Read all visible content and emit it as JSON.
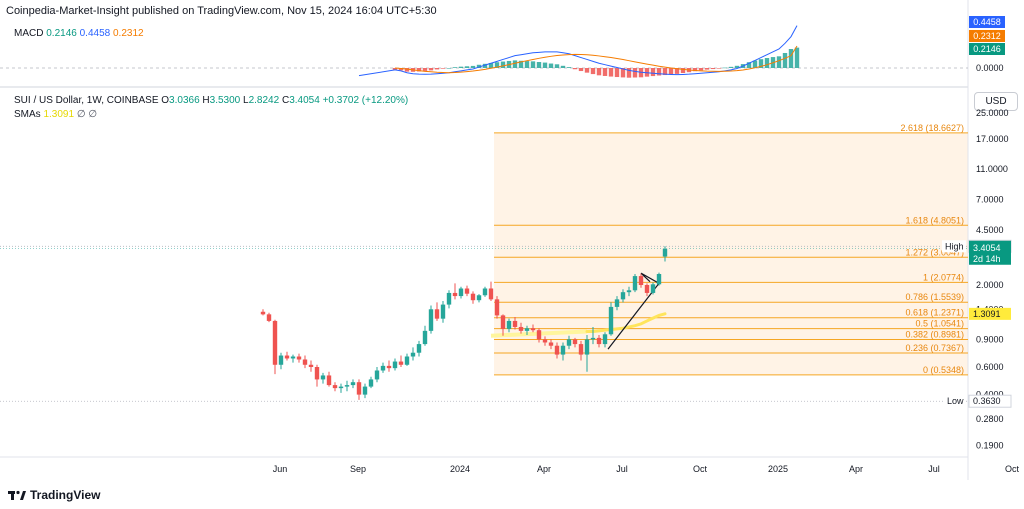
{
  "header": {
    "published": "Coinpedia-Market-Insight published on TradingView.com, Nov 15, 2024 16:04 UTC+5:30"
  },
  "macd": {
    "label": "MACD",
    "v1": "0.2146",
    "v2": "0.4458",
    "v3": "0.2312",
    "scale": [
      "0.4458",
      "0.2312",
      "0.2146",
      "0.0000"
    ],
    "colors": {
      "macd": "#2962ff",
      "signal": "#f57c00",
      "hist_up": "#26a69a",
      "hist_down": "#ef5350"
    }
  },
  "legend": {
    "symbol": "SUI / US Dollar, 1W, COINBASE",
    "o_label": "O",
    "o": "3.0366",
    "h_label": "H",
    "h": "3.5300",
    "l_label": "L",
    "l": "2.8242",
    "c_label": "C",
    "c": "3.4054",
    "change": "+0.3702 (+12.20%)",
    "smas_label": "SMAs",
    "sma_val": "1.3091",
    "sma_z1": "∅",
    "sma_z2": "∅"
  },
  "currency": "USD",
  "price_labels": {
    "high_tag": "High",
    "high": "3.5300",
    "last": "3.4054",
    "countdown": "2d 14h",
    "sma": "1.3091",
    "low_tag": "Low",
    "low": "0.3630"
  },
  "brand": {
    "name": "TradingView",
    "icon": "tradingview-logo-icon"
  },
  "chart_data": {
    "type": "candlestick",
    "scale": "log",
    "ylim": [
      0.16,
      30
    ],
    "y_ticks": [
      {
        "v": 25,
        "t": "25.0000"
      },
      {
        "v": 17,
        "t": "17.0000"
      },
      {
        "v": 11,
        "t": "11.0000"
      },
      {
        "v": 7,
        "t": "7.0000"
      },
      {
        "v": 4.5,
        "t": "4.5000"
      },
      {
        "v": 2,
        "t": "2.0000"
      },
      {
        "v": 1.4,
        "t": "1.4000"
      },
      {
        "v": 0.9,
        "t": "0.9000"
      },
      {
        "v": 0.6,
        "t": "0.6000"
      },
      {
        "v": 0.4,
        "t": "0.4000"
      },
      {
        "v": 0.28,
        "t": "0.2800"
      },
      {
        "v": 0.19,
        "t": "0.1900"
      }
    ],
    "x_ticks": [
      {
        "t": "Jun",
        "w": 0
      },
      {
        "t": "Sep",
        "w": 13
      },
      {
        "t": "2024",
        "w": 30
      },
      {
        "t": "Apr",
        "w": 44
      },
      {
        "t": "Jul",
        "w": 57
      },
      {
        "t": "Oct",
        "w": 70
      },
      {
        "t": "2025",
        "w": 83
      },
      {
        "t": "Apr",
        "w": 96
      },
      {
        "t": "Jul",
        "w": 109
      },
      {
        "t": "Oct",
        "w": 122
      }
    ],
    "fibonacci": [
      {
        "label": "2.618 (18.6627)",
        "value": 18.6627
      },
      {
        "label": "1.618 (4.8051)",
        "value": 4.8051
      },
      {
        "label": "1.272 (3.0047)",
        "value": 3.0047
      },
      {
        "label": "1 (2.0774)",
        "value": 2.0774
      },
      {
        "label": "0.786 (1.5539)",
        "value": 1.5539
      },
      {
        "label": "0.618 (1.2371)",
        "value": 1.2371
      },
      {
        "label": "0.5 (1.0541)",
        "value": 1.0541
      },
      {
        "label": "0.382 (0.8981)",
        "value": 0.8981
      },
      {
        "label": "0.236 (0.7367)",
        "value": 0.7367
      },
      {
        "label": "0 (0.5348)",
        "value": 0.5348
      }
    ],
    "candles": [
      [
        1.35,
        1.4,
        1.28,
        1.3
      ],
      [
        1.3,
        1.33,
        1.16,
        1.18
      ],
      [
        1.18,
        1.2,
        0.54,
        0.62
      ],
      [
        0.62,
        0.74,
        0.58,
        0.71
      ],
      [
        0.71,
        0.75,
        0.66,
        0.68
      ],
      [
        0.68,
        0.72,
        0.64,
        0.7
      ],
      [
        0.7,
        0.73,
        0.64,
        0.67
      ],
      [
        0.67,
        0.71,
        0.59,
        0.62
      ],
      [
        0.62,
        0.66,
        0.56,
        0.6
      ],
      [
        0.6,
        0.62,
        0.45,
        0.5
      ],
      [
        0.5,
        0.55,
        0.47,
        0.53
      ],
      [
        0.53,
        0.56,
        0.45,
        0.46
      ],
      [
        0.46,
        0.48,
        0.42,
        0.44
      ],
      [
        0.44,
        0.47,
        0.41,
        0.45
      ],
      [
        0.45,
        0.49,
        0.42,
        0.46
      ],
      [
        0.46,
        0.5,
        0.44,
        0.48
      ],
      [
        0.48,
        0.5,
        0.37,
        0.4
      ],
      [
        0.4,
        0.47,
        0.38,
        0.45
      ],
      [
        0.45,
        0.52,
        0.44,
        0.5
      ],
      [
        0.5,
        0.6,
        0.48,
        0.57
      ],
      [
        0.57,
        0.64,
        0.55,
        0.61
      ],
      [
        0.61,
        0.66,
        0.56,
        0.59
      ],
      [
        0.59,
        0.68,
        0.57,
        0.65
      ],
      [
        0.65,
        0.71,
        0.6,
        0.62
      ],
      [
        0.62,
        0.73,
        0.61,
        0.7
      ],
      [
        0.7,
        0.8,
        0.66,
        0.74
      ],
      [
        0.74,
        0.88,
        0.7,
        0.84
      ],
      [
        0.84,
        1.1,
        0.82,
        1.02
      ],
      [
        1.02,
        1.48,
        0.98,
        1.4
      ],
      [
        1.4,
        1.55,
        1.18,
        1.22
      ],
      [
        1.22,
        1.58,
        1.15,
        1.5
      ],
      [
        1.5,
        1.85,
        1.42,
        1.78
      ],
      [
        1.78,
        2.05,
        1.62,
        1.7
      ],
      [
        1.7,
        1.95,
        1.64,
        1.9
      ],
      [
        1.9,
        1.98,
        1.7,
        1.76
      ],
      [
        1.76,
        1.82,
        1.52,
        1.6
      ],
      [
        1.6,
        1.75,
        1.55,
        1.72
      ],
      [
        1.72,
        1.95,
        1.68,
        1.9
      ],
      [
        1.9,
        2.1,
        1.58,
        1.62
      ],
      [
        1.62,
        1.7,
        1.22,
        1.28
      ],
      [
        1.28,
        1.3,
        0.95,
        1.05
      ],
      [
        1.05,
        1.22,
        1.0,
        1.18
      ],
      [
        1.18,
        1.25,
        1.04,
        1.08
      ],
      [
        1.08,
        1.15,
        0.98,
        1.02
      ],
      [
        1.02,
        1.1,
        0.96,
        1.06
      ],
      [
        1.06,
        1.12,
        1.0,
        1.03
      ],
      [
        1.03,
        1.06,
        0.86,
        0.9
      ],
      [
        0.9,
        0.94,
        0.82,
        0.86
      ],
      [
        0.86,
        0.9,
        0.78,
        0.82
      ],
      [
        0.82,
        0.86,
        0.68,
        0.72
      ],
      [
        0.72,
        0.86,
        0.66,
        0.82
      ],
      [
        0.82,
        0.95,
        0.78,
        0.9
      ],
      [
        0.9,
        0.92,
        0.8,
        0.84
      ],
      [
        0.84,
        0.88,
        0.66,
        0.72
      ],
      [
        0.72,
        0.96,
        0.56,
        0.9
      ],
      [
        0.9,
        1.08,
        0.84,
        0.92
      ],
      [
        0.92,
        0.96,
        0.8,
        0.84
      ],
      [
        0.84,
        1.0,
        0.8,
        0.97
      ],
      [
        0.97,
        1.55,
        0.95,
        1.45
      ],
      [
        1.45,
        1.7,
        1.38,
        1.62
      ],
      [
        1.62,
        1.88,
        1.55,
        1.8
      ],
      [
        1.8,
        1.95,
        1.7,
        1.85
      ],
      [
        1.85,
        2.35,
        1.8,
        2.28
      ],
      [
        2.28,
        2.36,
        1.92,
        2.0
      ],
      [
        2.0,
        2.05,
        1.7,
        1.78
      ],
      [
        1.78,
        2.08,
        1.74,
        2.02
      ],
      [
        2.02,
        2.4,
        1.98,
        2.35
      ],
      [
        3.0366,
        3.53,
        2.8242,
        3.4054
      ]
    ],
    "sma_series": [
      1.01,
      1.01,
      1.02,
      1.03,
      1.04,
      1.05,
      1.06,
      1.08,
      1.1,
      1.13,
      1.18,
      1.23,
      1.28,
      1.31
    ],
    "macd_series": [
      -0.02,
      -0.03,
      -0.05,
      -0.06,
      -0.065,
      -0.066,
      -0.065,
      -0.06,
      -0.055,
      -0.05,
      -0.04,
      -0.03,
      -0.02,
      -0.01,
      0.01,
      0.03,
      0.05,
      0.07,
      0.09,
      0.11,
      0.13,
      0.14,
      0.15,
      0.16,
      0.165,
      0.17,
      0.17,
      0.17,
      0.16,
      0.15,
      0.13,
      0.11,
      0.09,
      0.07,
      0.05,
      0.035,
      0.02,
      0.005,
      -0.01,
      -0.025,
      -0.035,
      -0.045,
      -0.05,
      -0.055,
      -0.06,
      -0.065,
      -0.068,
      -0.07,
      -0.068,
      -0.065,
      -0.06,
      -0.055,
      -0.05,
      -0.045,
      -0.04,
      -0.03,
      -0.02,
      -0.005,
      0.02,
      0.05,
      0.08,
      0.11,
      0.14,
      0.17,
      0.2,
      0.26,
      0.33,
      0.4458
    ],
    "signal_series": [
      0.0,
      -0.005,
      -0.012,
      -0.02,
      -0.028,
      -0.035,
      -0.04,
      -0.045,
      -0.048,
      -0.05,
      -0.048,
      -0.044,
      -0.038,
      -0.032,
      -0.024,
      -0.014,
      -0.003,
      0.009,
      0.022,
      0.036,
      0.05,
      0.064,
      0.077,
      0.09,
      0.102,
      0.113,
      0.123,
      0.131,
      0.137,
      0.141,
      0.143,
      0.142,
      0.139,
      0.134,
      0.127,
      0.119,
      0.11,
      0.1,
      0.089,
      0.077,
      0.065,
      0.053,
      0.041,
      0.03,
      0.019,
      0.009,
      0.0,
      -0.008,
      -0.015,
      -0.021,
      -0.026,
      -0.03,
      -0.033,
      -0.034,
      -0.035,
      -0.034,
      -0.032,
      -0.028,
      -0.021,
      -0.011,
      0.002,
      0.017,
      0.035,
      0.055,
      0.077,
      0.102,
      0.13,
      0.2312
    ]
  }
}
